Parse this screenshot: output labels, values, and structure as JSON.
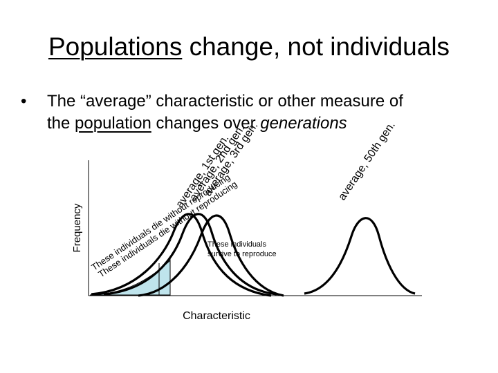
{
  "slide": {
    "title_underlined": "Populations",
    "title_rest": " change, not individuals",
    "bullet_marker": "•",
    "bullet_line1": "The “average” characteristic or other measure of",
    "bullet_line2_underlined": "population",
    "bullet_line2_prefix": "the ",
    "bullet_line2_mid": " changes over ",
    "bullet_line2_italic": "generations"
  },
  "diagram": {
    "y_axis_label": "Frequency",
    "x_axis_label": "Characteristic",
    "label_first_gen": "average, 1st gen.",
    "label_second_gen": "average, 2nd gen.",
    "label_third_gen": "average, 3rd gen.",
    "label_fiftieth_gen": "average, 50th gen.",
    "label_die_1": "These individuals die without reproducing",
    "label_die_2": "These individuals die without reproducing",
    "label_survive_line1": "These individuals",
    "label_survive_line2": "survive to reproduce",
    "shade_color": "#bfe4ec"
  }
}
